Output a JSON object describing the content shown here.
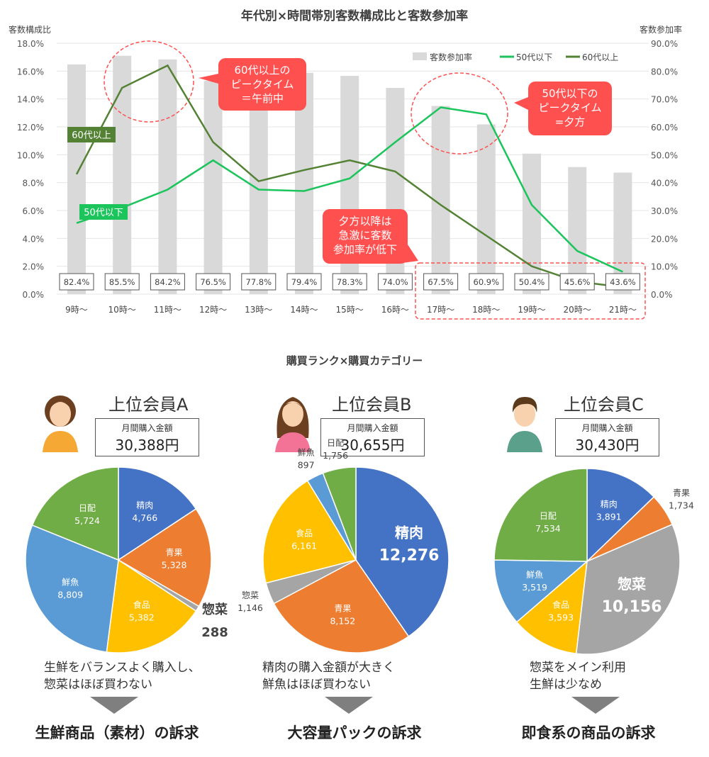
{
  "chart_data": [
    {
      "type": "bar+line",
      "title": "年代別×時間帯別客数構成比と客数参加率",
      "ylabel_left": "客数構成比",
      "ylabel_right": "客数参加率",
      "ylim_left": [
        0,
        18
      ],
      "ylim_right": [
        0,
        90
      ],
      "yticks_left": [
        "0.0%",
        "2.0%",
        "4.0%",
        "6.0%",
        "8.0%",
        "10.0%",
        "12.0%",
        "14.0%",
        "16.0%",
        "18.0%"
      ],
      "yticks_right": [
        "0.0%",
        "10.0%",
        "20.0%",
        "30.0%",
        "40.0%",
        "50.0%",
        "60.0%",
        "70.0%",
        "80.0%",
        "90.0%"
      ],
      "grid": true,
      "legend_position": "top-right",
      "categories": [
        "9時～",
        "10時～",
        "11時～",
        "12時～",
        "13時～",
        "14時～",
        "15時～",
        "16時～",
        "17時～",
        "18時～",
        "19時～",
        "20時～",
        "21時～"
      ],
      "series": [
        {
          "name": "客数参加率",
          "type": "bar",
          "axis": "right",
          "color": "#D9D9D9",
          "values": [
            82.4,
            85.5,
            84.2,
            76.5,
            77.8,
            79.4,
            78.3,
            74.0,
            67.5,
            60.9,
            50.4,
            45.6,
            43.6
          ],
          "labels": [
            "82.4%",
            "85.5%",
            "84.2%",
            "76.5%",
            "77.8%",
            "79.4%",
            "78.3%",
            "74.0%",
            "67.5%",
            "60.9%",
            "50.4%",
            "45.6%",
            "43.6%"
          ]
        },
        {
          "name": "50代以下",
          "type": "line",
          "axis": "left",
          "color": "#1CC45C",
          "values": [
            5.1,
            6.2,
            7.5,
            9.6,
            7.5,
            7.4,
            8.3,
            10.9,
            13.4,
            12.9,
            6.4,
            3.1,
            1.6
          ]
        },
        {
          "name": "60代以上",
          "type": "line",
          "axis": "left",
          "color": "#548235",
          "values": [
            8.6,
            14.8,
            16.4,
            10.9,
            8.1,
            8.9,
            9.6,
            8.8,
            6.4,
            4.2,
            2.0,
            0.9,
            0.5
          ]
        }
      ],
      "annotations": [
        {
          "lines": [
            "60代以上の",
            "ピークタイム",
            "＝午前中"
          ]
        },
        {
          "lines": [
            "50代以下の",
            "ピークタイム",
            "=夕方"
          ]
        },
        {
          "lines": [
            "夕方以降は",
            "急激に客数",
            "参加率が低下"
          ]
        }
      ],
      "series_labels": [
        "60代以上",
        "50代以下"
      ]
    },
    {
      "type": "pie",
      "title": "上位会員A",
      "highlight": "惣菜",
      "categories": [
        "精肉",
        "青果",
        "惣菜",
        "食品",
        "鮮魚",
        "日配"
      ],
      "values": [
        4766,
        5328,
        288,
        5382,
        8809,
        5724
      ],
      "labels": [
        "4,766",
        "5,328",
        "288",
        "5,382",
        "8,809",
        "5,724"
      ]
    },
    {
      "type": "pie",
      "title": "上位会員B",
      "highlight": "精肉",
      "categories": [
        "精肉",
        "青果",
        "惣菜",
        "食品",
        "鮮魚",
        "日配"
      ],
      "values": [
        12276,
        8152,
        1146,
        6161,
        897,
        1756
      ],
      "labels": [
        "12,276",
        "8,152",
        "1,146",
        "6,161",
        "897",
        "1,756"
      ]
    },
    {
      "type": "pie",
      "title": "上位会員C",
      "highlight": "惣菜",
      "categories": [
        "精肉",
        "青果",
        "惣菜",
        "食品",
        "鮮魚",
        "日配"
      ],
      "values": [
        3891,
        1734,
        10156,
        3593,
        3519,
        7534
      ],
      "labels": [
        "3,891",
        "1,734",
        "10,156",
        "3,593",
        "3,519",
        "7,534"
      ]
    }
  ],
  "colors": {
    "精肉": "#4472C4",
    "青果": "#ED7D31",
    "惣菜": "#A5A5A5",
    "食品": "#FFC000",
    "鮮魚": "#5B9BD5",
    "日配": "#70AD47",
    "callout": "#FF5050"
  },
  "section_title": "購買ランク×購買カテゴリー",
  "members": [
    {
      "name": "上位会員A",
      "amount_label": "月間購入金額",
      "amount": "30,388円",
      "desc": [
        "生鮮をバランスよく購入し、",
        "惣菜はほぼ買わない"
      ],
      "conclusion": "生鮮商品（素材）の訴求",
      "avatar": "woman-short-hair"
    },
    {
      "name": "上位会員B",
      "amount_label": "月間購入金額",
      "amount": "30,655円",
      "desc": [
        "精肉の購入金額が大きく",
        "鮮魚はほぼ買わない"
      ],
      "conclusion": "大容量パックの訴求",
      "avatar": "woman-long-hair"
    },
    {
      "name": "上位会員C",
      "amount_label": "月間購入金額",
      "amount": "30,430円",
      "desc": [
        "惣菜をメイン利用",
        "生鮮は少なめ"
      ],
      "conclusion": "即食系の商品の訴求",
      "avatar": "man"
    }
  ]
}
